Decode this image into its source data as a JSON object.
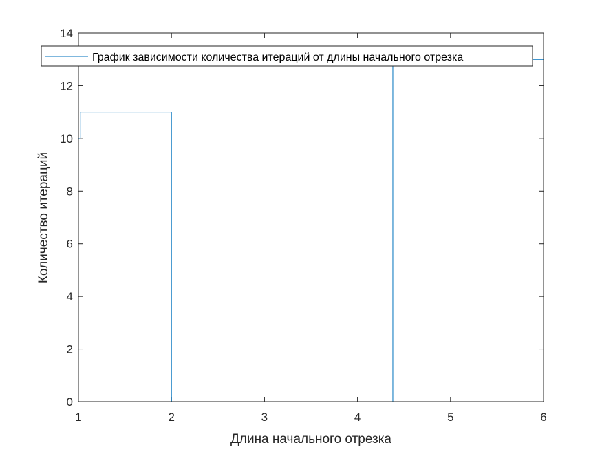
{
  "chart_data": {
    "type": "line",
    "line_style": "stairs",
    "title": "",
    "xlabel": "Длина начального отрезка",
    "ylabel": "Количество итераций",
    "xlim": [
      1,
      6
    ],
    "ylim": [
      0,
      14
    ],
    "xticks": [
      "1",
      "2",
      "3",
      "4",
      "5",
      "6"
    ],
    "yticks": [
      "0",
      "2",
      "4",
      "6",
      "8",
      "10",
      "12",
      "14"
    ],
    "grid": false,
    "legend_position": "top",
    "series": [
      {
        "name": "График зависимости количества итераций от длины начального отрезка",
        "color": "#0072BD",
        "x": [
          1.0,
          1.02,
          2.0,
          4.38,
          5.87,
          6.0
        ],
        "y": [
          10,
          11,
          0,
          13,
          13,
          13
        ]
      }
    ]
  }
}
